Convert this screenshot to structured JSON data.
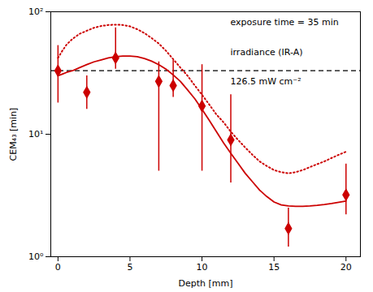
{
  "chart_data": {
    "type": "scatter",
    "color": "#cc0000",
    "xlabel": "Depth [mm]",
    "ylabel": "CEM₄₃ [min]",
    "log": "y",
    "grid": false,
    "xlim": [
      -0.5,
      21
    ],
    "xticks": [
      0,
      5,
      10,
      15,
      20
    ],
    "ylim": [
      1.0,
      100
    ],
    "yticks": [
      {
        "value": 1,
        "label": "10⁰"
      },
      {
        "value": 10,
        "label": "10¹"
      },
      {
        "value": 100,
        "label": "10²"
      }
    ],
    "series": [
      {
        "type": "scatter",
        "marker": "diamond",
        "x": [
          0,
          2,
          4,
          7,
          8,
          10,
          12,
          16,
          20
        ],
        "values": [
          33,
          22,
          42,
          27,
          25,
          17,
          9,
          1.7,
          3.2
        ],
        "error_low": [
          15,
          6,
          8,
          22,
          5,
          12,
          5,
          0.5,
          1.0
        ],
        "error_high": [
          20,
          8,
          32,
          12,
          15,
          20,
          12,
          0.8,
          2.5
        ]
      },
      {
        "type": "line",
        "line_style": "solid",
        "x": [
          0,
          0.3,
          0.6,
          1,
          1.5,
          2,
          2.5,
          3,
          3.5,
          4,
          4.5,
          5,
          5.5,
          6,
          6.5,
          7,
          7.5,
          8,
          8.5,
          9,
          9.5,
          10,
          10.5,
          11,
          11.5,
          12,
          12.5,
          13,
          13.5,
          14,
          14.5,
          15,
          15.5,
          16,
          16.5,
          17,
          17.5,
          18,
          18.5,
          19,
          19.5,
          20
        ],
        "values": [
          30,
          31,
          32,
          33,
          35,
          37,
          39,
          40.5,
          42,
          43,
          43.5,
          43.5,
          43,
          41.5,
          39.5,
          37,
          34,
          30.5,
          27,
          23,
          19.5,
          16,
          13,
          10.5,
          8.5,
          7,
          5.8,
          4.8,
          4.1,
          3.5,
          3.1,
          2.8,
          2.65,
          2.6,
          2.58,
          2.58,
          2.6,
          2.63,
          2.67,
          2.72,
          2.78,
          2.85
        ]
      },
      {
        "type": "line",
        "line_style": "dotted",
        "x": [
          0,
          0.3,
          0.6,
          1,
          1.5,
          2,
          2.5,
          3,
          3.5,
          4,
          4.5,
          5,
          5.5,
          6,
          6.5,
          7,
          7.5,
          8,
          8.5,
          9,
          9.5,
          10,
          10.5,
          11,
          11.5,
          12,
          12.5,
          13,
          13.5,
          14,
          14.5,
          15,
          15.5,
          16,
          16.5,
          17,
          17.5,
          18,
          18.5,
          19,
          19.5,
          20
        ],
        "values": [
          42,
          48,
          54,
          60,
          66,
          70,
          74,
          76.5,
          78,
          78.5,
          78,
          76,
          72,
          67,
          61,
          55,
          48,
          41,
          35,
          30,
          25,
          21,
          17.5,
          14.5,
          12.5,
          10.5,
          9,
          7.8,
          6.8,
          6.0,
          5.5,
          5.1,
          4.9,
          4.8,
          4.9,
          5.1,
          5.4,
          5.7,
          6.0,
          6.4,
          6.8,
          7.2
        ]
      }
    ],
    "reference_lines": [
      {
        "y": 33,
        "color": "black",
        "line_style": "dashed"
      }
    ],
    "annotations": [
      "exposure time = 35 min",
      "irradiance (IR-A)",
      "126.5 mW cm⁻²"
    ]
  }
}
